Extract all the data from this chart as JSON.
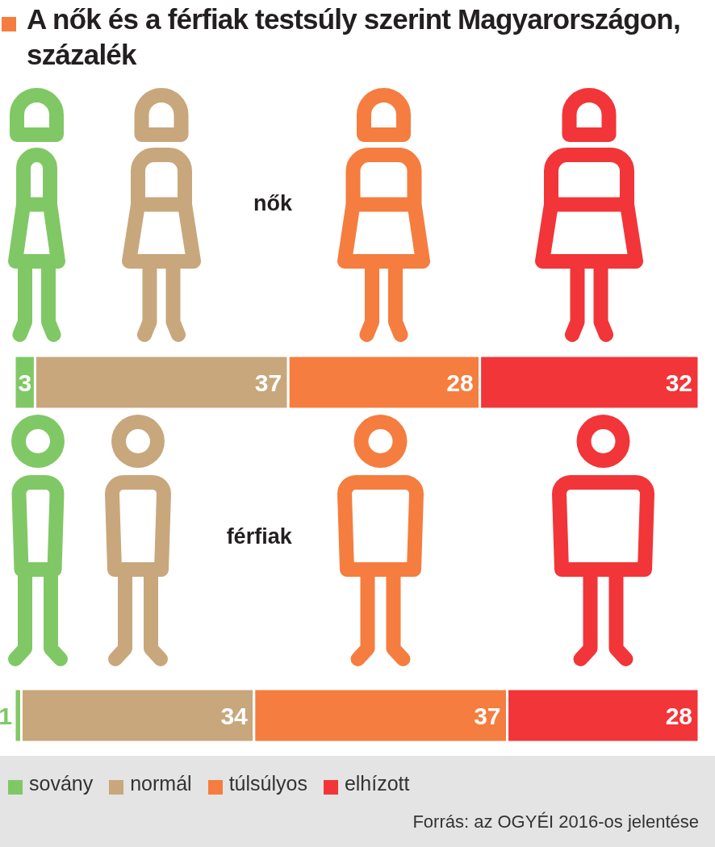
{
  "chart_data": {
    "type": "bar",
    "orientation": "horizontal",
    "stacked": true,
    "title": "A nők és a férfiak testsúly szerint Magyarországon, százalék",
    "categories": [
      "nők",
      "férfiak"
    ],
    "series": [
      {
        "name": "sovány",
        "color": "#80c865",
        "values": [
          3,
          1
        ]
      },
      {
        "name": "normál",
        "color": "#c8a77c",
        "values": [
          37,
          34
        ]
      },
      {
        "name": "túlsúlyos",
        "color": "#f57d3f",
        "values": [
          28,
          37
        ]
      },
      {
        "name": "elhízott",
        "color": "#f23538",
        "values": [
          32,
          28
        ]
      }
    ],
    "data_labels": true,
    "legend": "bottom",
    "annotations": [
      "Forrás: az OGYÉI 2016-os jelentése"
    ]
  }
}
